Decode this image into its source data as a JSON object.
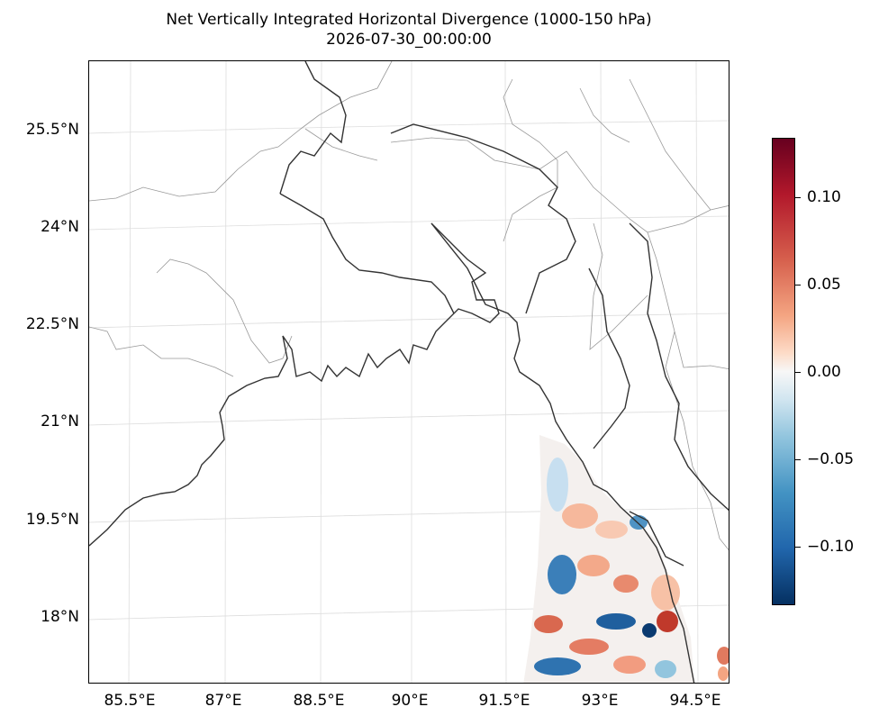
{
  "title": {
    "line1": "Net Vertically Integrated Horizontal Divergence (1000-150 hPa)",
    "line2": "2026-07-30_00:00:00"
  },
  "map": {
    "lat_labels": [
      "25.5°N",
      "24°N",
      "22.5°N",
      "21°N",
      "19.5°N",
      "18°N"
    ],
    "lon_labels": [
      "85.5°E",
      "87°E",
      "88.5°E",
      "90°E",
      "91.5°E",
      "93°E",
      "94.5°E"
    ]
  },
  "colorbar": {
    "colormap": "RdBu_r",
    "range": [
      -0.135,
      0.135
    ],
    "ticks": [
      "0.10",
      "0.05",
      "0.00",
      "−0.05",
      "−0.10"
    ]
  },
  "colors": {
    "coastline": "#333333",
    "borders": "#999999",
    "gridlines": "#dddddd"
  }
}
